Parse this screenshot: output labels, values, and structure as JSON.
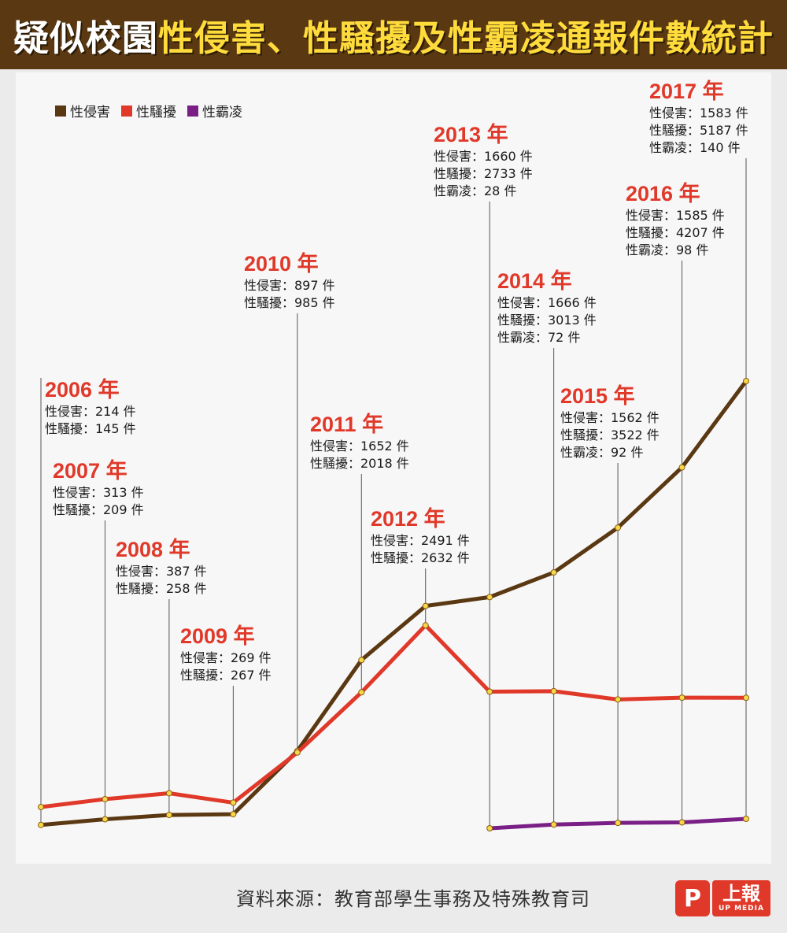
{
  "title": {
    "part1": "疑似校園",
    "part2": "性侵害、性騷擾及性霸凌通報件數統計"
  },
  "legend": {
    "items": [
      {
        "label": "性侵害",
        "color": "#5a3812"
      },
      {
        "label": "性騷擾",
        "color": "#e0392a"
      },
      {
        "label": "性霸凌",
        "color": "#7a1f86"
      }
    ]
  },
  "chart_data": {
    "type": "line",
    "title": "疑似校園性侵害、性騷擾及性霸凌通報件數統計",
    "unit": "件",
    "x": [
      "2006",
      "2007",
      "2008",
      "2009",
      "2010",
      "2011",
      "2012",
      "2013",
      "2014",
      "2015",
      "2016",
      "2017"
    ],
    "series": [
      {
        "name": "性侵害",
        "color": "#5a3812",
        "values": [
          214,
          313,
          387,
          269,
          897,
          1652,
          2491,
          1660,
          1666,
          1562,
          1585,
          1583
        ]
      },
      {
        "name": "性騷擾",
        "color": "#e0392a",
        "values": [
          145,
          209,
          258,
          267,
          985,
          2018,
          2632,
          2733,
          3013,
          3522,
          4207,
          5187
        ]
      },
      {
        "name": "性霸凌",
        "color": "#7a1f86",
        "values": [
          null,
          null,
          null,
          null,
          null,
          null,
          null,
          28,
          72,
          92,
          98,
          140
        ]
      }
    ],
    "grid": false,
    "legend_position": "top-left"
  },
  "annotations": [
    {
      "year": "2006 年",
      "rows": [
        "性侵害：214 件",
        "性騷擾：145 件"
      ]
    },
    {
      "year": "2007 年",
      "rows": [
        "性侵害：313 件",
        "性騷擾：209 件"
      ]
    },
    {
      "year": "2008 年",
      "rows": [
        "性侵害：387 件",
        "性騷擾：258 件"
      ]
    },
    {
      "year": "2009 年",
      "rows": [
        "性侵害：269 件",
        "性騷擾：267 件"
      ]
    },
    {
      "year": "2010 年",
      "rows": [
        "性侵害：897 件",
        "性騷擾：985 件"
      ]
    },
    {
      "year": "2011 年",
      "rows": [
        "性侵害：1652 件",
        "性騷擾：2018 件"
      ]
    },
    {
      "year": "2012 年",
      "rows": [
        "性侵害：2491 件",
        "性騷擾：2632 件"
      ]
    },
    {
      "year": "2013 年",
      "rows": [
        "性侵害：1660 件",
        "性騷擾：2733 件",
        "性霸凌：28 件"
      ]
    },
    {
      "year": "2014 年",
      "rows": [
        "性侵害：1666 件",
        "性騷擾：3013 件",
        "性霸凌：72 件"
      ]
    },
    {
      "year": "2015 年",
      "rows": [
        "性侵害：1562 件",
        "性騷擾：3522 件",
        "性霸凌：92 件"
      ]
    },
    {
      "year": "2016 年",
      "rows": [
        "性侵害：1585 件",
        "性騷擾：4207 件",
        "性霸凌：98 件"
      ]
    },
    {
      "year": "2017 年",
      "rows": [
        "性侵害：1583 件",
        "性騷擾：5187 件",
        "性霸凌：140 件"
      ]
    }
  ],
  "source": "資料來源：教育部學生事務及特殊教育司",
  "logo": {
    "main": "上報",
    "sub": "UP MEDIA"
  }
}
